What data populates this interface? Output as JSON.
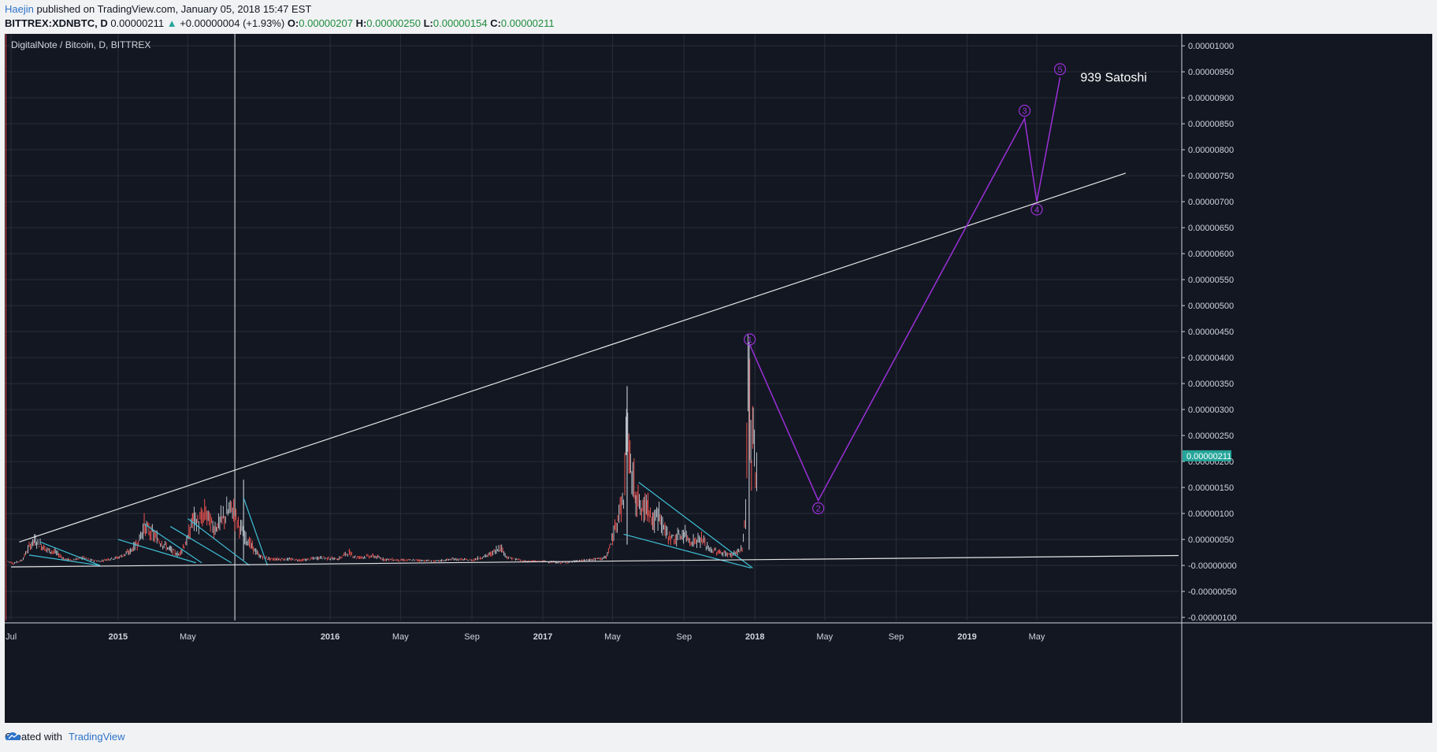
{
  "header": {
    "author": "Haejin",
    "published_text": "published on TradingView.com, January 05, 2018 15:47 EST"
  },
  "symbol_line": {
    "symbol": "BITTREX:XDNBTC, D",
    "last": "0.00000211",
    "arrow": "▲",
    "change": "+0.00000004 (+1.93%)",
    "o_label": "O:",
    "o_value": "0.00000207",
    "h_label": "H:",
    "h_value": "0.00000250",
    "l_label": "L:",
    "l_value": "0.00000154",
    "c_label": "C:",
    "c_value": "0.00000211"
  },
  "footer": {
    "created_with": "Created with",
    "brand": "TradingView"
  },
  "colors": {
    "background": "#131722",
    "grid": "#2a2e39",
    "trendline": "#e6e6e6",
    "wedge": "#3fc1d6",
    "wave": "#9b30d9",
    "price_badge": "#26a69a",
    "candle_up": "#b8c0c8",
    "candle_down": "#ef5350"
  },
  "chart_data": {
    "type": "candlestick",
    "title": "DigitalNote / Bitcoin, D, BITTREX",
    "x_ticks": [
      {
        "label": "Jul",
        "date": "2014-07-01",
        "bold": false
      },
      {
        "label": "2015",
        "date": "2015-01-01",
        "bold": true
      },
      {
        "label": "May",
        "date": "2015-05-01",
        "bold": false
      },
      {
        "label": "2016",
        "date": "2016-01-01",
        "bold": true
      },
      {
        "label": "May",
        "date": "2016-05-01",
        "bold": false
      },
      {
        "label": "Sep",
        "date": "2016-09-01",
        "bold": false
      },
      {
        "label": "2017",
        "date": "2017-01-01",
        "bold": true
      },
      {
        "label": "May",
        "date": "2017-05-01",
        "bold": false
      },
      {
        "label": "Sep",
        "date": "2017-09-01",
        "bold": false
      },
      {
        "label": "2018",
        "date": "2018-01-01",
        "bold": true
      },
      {
        "label": "May",
        "date": "2018-05-01",
        "bold": false
      },
      {
        "label": "Sep",
        "date": "2018-09-01",
        "bold": false
      },
      {
        "label": "2019",
        "date": "2019-01-01",
        "bold": true
      },
      {
        "label": "May",
        "date": "2019-05-01",
        "bold": false
      }
    ],
    "y_ticks": [
      {
        "value": 1e-05,
        "label": "0.00001000"
      },
      {
        "value": 9.5e-06,
        "label": "0.00000950"
      },
      {
        "value": 9e-06,
        "label": "0.00000900"
      },
      {
        "value": 8.5e-06,
        "label": "0.00000850"
      },
      {
        "value": 8e-06,
        "label": "0.00000800"
      },
      {
        "value": 7.5e-06,
        "label": "0.00000750"
      },
      {
        "value": 7e-06,
        "label": "0.00000700"
      },
      {
        "value": 6.5e-06,
        "label": "0.00000650"
      },
      {
        "value": 6e-06,
        "label": "0.00000600"
      },
      {
        "value": 5.5e-06,
        "label": "0.00000550"
      },
      {
        "value": 5e-06,
        "label": "0.00000500"
      },
      {
        "value": 4.5e-06,
        "label": "0.00000450"
      },
      {
        "value": 4e-06,
        "label": "0.00000400"
      },
      {
        "value": 3.5e-06,
        "label": "0.00000350"
      },
      {
        "value": 3e-06,
        "label": "0.00000300"
      },
      {
        "value": 2.5e-06,
        "label": "0.00000250"
      },
      {
        "value": 2e-06,
        "label": "0.00000200"
      },
      {
        "value": 1.5e-06,
        "label": "0.00000150"
      },
      {
        "value": 1e-06,
        "label": "0.00000100"
      },
      {
        "value": 5e-07,
        "label": "0.00000050"
      },
      {
        "value": 0.0,
        "label": "-0.00000000"
      },
      {
        "value": -5e-07,
        "label": "-0.00000050"
      },
      {
        "value": -1e-06,
        "label": "-0.00000100"
      }
    ],
    "ylim": [
      -1.06e-06,
      1.023e-05
    ],
    "xlim": [
      "2014-06-20",
      "2019-12-31"
    ],
    "last_price": {
      "value": 2.11e-06,
      "label": "0.00000211"
    },
    "price_series": [
      [
        "2014-06-25",
        8e-08
      ],
      [
        "2014-07-05",
        4e-08
      ],
      [
        "2014-07-20",
        1e-07
      ],
      [
        "2014-08-01",
        3.5e-07
      ],
      [
        "2014-08-10",
        4.8e-07
      ],
      [
        "2014-08-20",
        4e-07
      ],
      [
        "2014-09-01",
        3e-07
      ],
      [
        "2014-09-15",
        2.5e-07
      ],
      [
        "2014-10-01",
        1.2e-07
      ],
      [
        "2014-10-15",
        1e-07
      ],
      [
        "2014-11-01",
        1.5e-07
      ],
      [
        "2014-11-15",
        1e-07
      ],
      [
        "2014-12-01",
        8e-08
      ],
      [
        "2014-12-15",
        1.2e-07
      ],
      [
        "2015-01-01",
        1.5e-07
      ],
      [
        "2015-01-20",
        2.5e-07
      ],
      [
        "2015-02-05",
        4.5e-07
      ],
      [
        "2015-02-15",
        7.5e-07
      ],
      [
        "2015-03-01",
        6e-07
      ],
      [
        "2015-03-15",
        4.5e-07
      ],
      [
        "2015-04-01",
        3e-07
      ],
      [
        "2015-04-15",
        2e-07
      ],
      [
        "2015-05-01",
        5e-07
      ],
      [
        "2015-05-10",
        9e-07
      ],
      [
        "2015-05-20",
        8e-07
      ],
      [
        "2015-06-01",
        1e-06
      ],
      [
        "2015-06-15",
        7e-07
      ],
      [
        "2015-07-01",
        9e-07
      ],
      [
        "2015-07-15",
        1.1e-06
      ],
      [
        "2015-07-25",
        8.5e-07
      ],
      [
        "2015-08-05",
        6e-07
      ],
      [
        "2015-08-20",
        3.5e-07
      ],
      [
        "2015-09-01",
        1.8e-07
      ],
      [
        "2015-09-20",
        1.2e-07
      ],
      [
        "2015-10-15",
        1.2e-07
      ],
      [
        "2015-11-15",
        1e-07
      ],
      [
        "2015-12-15",
        1.5e-07
      ],
      [
        "2016-01-15",
        1.2e-07
      ],
      [
        "2016-02-01",
        2.5e-07
      ],
      [
        "2016-02-15",
        1.5e-07
      ],
      [
        "2016-03-15",
        1.8e-07
      ],
      [
        "2016-04-01",
        1.2e-07
      ],
      [
        "2016-05-01",
        1e-07
      ],
      [
        "2016-06-01",
        1e-07
      ],
      [
        "2016-07-01",
        8e-08
      ],
      [
        "2016-08-01",
        1.2e-07
      ],
      [
        "2016-09-01",
        1e-07
      ],
      [
        "2016-10-01",
        2e-07
      ],
      [
        "2016-10-20",
        3.5e-07
      ],
      [
        "2016-11-01",
        1.5e-07
      ],
      [
        "2016-12-01",
        8e-08
      ],
      [
        "2017-01-01",
        8e-08
      ],
      [
        "2017-02-01",
        5e-08
      ],
      [
        "2017-03-01",
        8e-08
      ],
      [
        "2017-04-01",
        1.2e-07
      ],
      [
        "2017-04-20",
        1.5e-07
      ],
      [
        "2017-05-01",
        5e-07
      ],
      [
        "2017-05-10",
        1e-06
      ],
      [
        "2017-05-20",
        1.2e-06
      ],
      [
        "2017-05-25",
        2.7e-06
      ],
      [
        "2017-06-01",
        1.8e-06
      ],
      [
        "2017-06-10",
        1.4e-06
      ],
      [
        "2017-06-20",
        1e-06
      ],
      [
        "2017-07-01",
        1.2e-06
      ],
      [
        "2017-07-10",
        8e-07
      ],
      [
        "2017-07-20",
        1e-06
      ],
      [
        "2017-08-01",
        6e-07
      ],
      [
        "2017-08-15",
        5e-07
      ],
      [
        "2017-09-01",
        6e-07
      ],
      [
        "2017-09-15",
        4.5e-07
      ],
      [
        "2017-10-01",
        5e-07
      ],
      [
        "2017-10-15",
        3e-07
      ],
      [
        "2017-11-01",
        2.5e-07
      ],
      [
        "2017-11-20",
        2e-07
      ],
      [
        "2017-12-10",
        3e-07
      ],
      [
        "2017-12-16",
        1e-06
      ],
      [
        "2017-12-20",
        3.5e-06
      ],
      [
        "2017-12-23",
        3e-06
      ],
      [
        "2017-12-26",
        1.8e-06
      ],
      [
        "2017-12-29",
        2.5e-06
      ],
      [
        "2018-01-02",
        1.6e-06
      ],
      [
        "2018-01-05",
        2.11e-06
      ]
    ],
    "spikes": [
      {
        "date": "2015-08-05",
        "high": 1.65e-06,
        "low": 1e-07
      },
      {
        "date": "2017-05-26",
        "high": 3.45e-06,
        "low": 4e-07
      },
      {
        "date": "2017-12-22",
        "high": 4.3e-06,
        "low": 3e-07
      }
    ],
    "vertical_markers": [
      {
        "date": "2014-06-22",
        "color": "#e0454a"
      },
      {
        "date": "2015-07-21",
        "color": "#e6e6e6"
      }
    ],
    "trendlines": [
      {
        "from": [
          "2014-07-15",
          4.5e-07
        ],
        "to": [
          "2019-10-01",
          7.55e-06
        ]
      },
      {
        "from": [
          "2014-07-01",
          -3e-08
        ],
        "to": [
          "2019-12-31",
          1.9e-07
        ]
      }
    ],
    "wedge_lines": [
      {
        "from": [
          "2014-08-01",
          2e-07
        ],
        "to": [
          "2014-12-01",
          0.0
        ]
      },
      {
        "from": [
          "2014-08-20",
          4.5e-07
        ],
        "to": [
          "2014-12-01",
          0.0
        ]
      },
      {
        "from": [
          "2015-01-01",
          5e-07
        ],
        "to": [
          "2015-05-15",
          5e-08
        ]
      },
      {
        "from": [
          "2015-02-15",
          8e-07
        ],
        "to": [
          "2015-05-25",
          5e-08
        ]
      },
      {
        "from": [
          "2015-04-01",
          7.5e-07
        ],
        "to": [
          "2015-07-15",
          5e-08
        ]
      },
      {
        "from": [
          "2015-05-01",
          9e-07
        ],
        "to": [
          "2015-08-15",
          0.0
        ]
      },
      {
        "from": [
          "2015-08-05",
          1.3e-06
        ],
        "to": [
          "2015-09-15",
          0.0
        ]
      },
      {
        "from": [
          "2017-05-20",
          6e-07
        ],
        "to": [
          "2017-12-25",
          -5e-08
        ]
      },
      {
        "from": [
          "2017-06-15",
          1.6e-06
        ],
        "to": [
          "2017-12-28",
          -5e-08
        ]
      }
    ],
    "wave_path": [
      {
        "label": "1",
        "date": "2017-12-23",
        "value": 4.25e-06,
        "label_value": 4.35e-06
      },
      {
        "label": "2",
        "date": "2018-04-20",
        "value": 1.25e-06,
        "label_value": 1.1e-06
      },
      {
        "label": "3",
        "date": "2019-04-10",
        "value": 8.6e-06,
        "label_value": 8.75e-06
      },
      {
        "label": "4",
        "date": "2019-05-01",
        "value": 7e-06,
        "label_value": 6.85e-06
      },
      {
        "label": "5",
        "date": "2019-06-10",
        "value": 9.39e-06,
        "label_value": 9.55e-06
      }
    ],
    "annotation": {
      "text": "939 Satoshi",
      "date": "2019-07-15",
      "value": 9.39e-06
    }
  }
}
